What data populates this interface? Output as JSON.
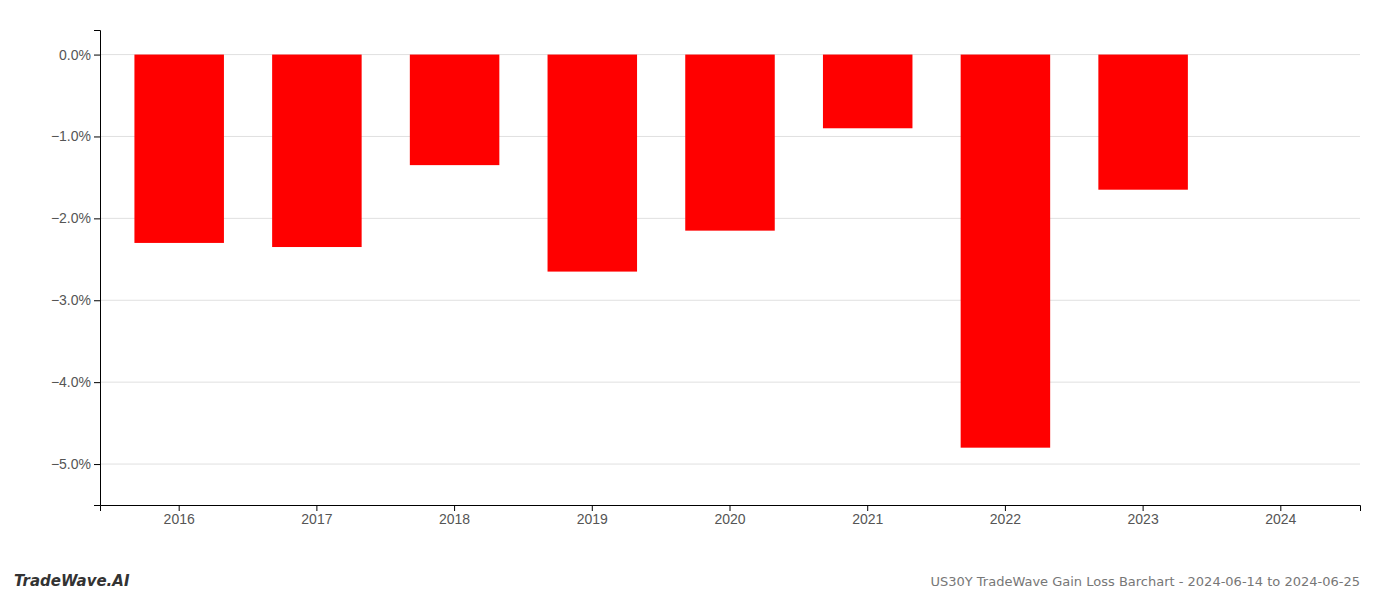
{
  "chart_data": {
    "type": "bar",
    "title": "US30Y TradeWave Gain Loss Barchart - 2024-06-14 to 2024-06-25",
    "annotations": [
      "TradeWave.AI"
    ],
    "categories": [
      "2016",
      "2017",
      "2018",
      "2019",
      "2020",
      "2021",
      "2022",
      "2023",
      "2024"
    ],
    "values": [
      -0.023,
      -0.0235,
      -0.0135,
      -0.0265,
      -0.0215,
      -0.009,
      -0.048,
      -0.0165,
      0.0
    ],
    "color": "#ff0000",
    "ylim": [
      -0.055,
      0.003
    ],
    "yticks": [
      {
        "value": 0.0,
        "label": "0.0%"
      },
      {
        "value": -0.01,
        "label": "−1.0%"
      },
      {
        "value": -0.02,
        "label": "−2.0%"
      },
      {
        "value": -0.03,
        "label": "−3.0%"
      },
      {
        "value": -0.04,
        "label": "−4.0%"
      },
      {
        "value": -0.05,
        "label": "−5.0%"
      }
    ],
    "grid": true
  }
}
